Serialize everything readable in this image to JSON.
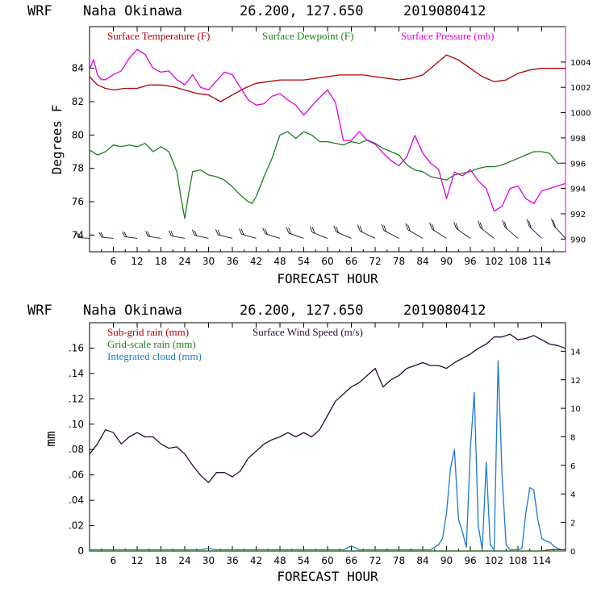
{
  "top_panel": {
    "header": {
      "model": "WRF",
      "location": "Naha Okinawa",
      "coords": "26.200, 127.650",
      "init": "2019080412"
    },
    "xlabel": "FORECAST HOUR",
    "ylabel": "Degrees F",
    "legend": {
      "temp": "Surface Temperature (F)",
      "dew": "Surface Dewpoint (F)",
      "pres": "Surface Pressure (mb)"
    }
  },
  "bottom_panel": {
    "header": {
      "model": "WRF",
      "location": "Naha Okinawa",
      "coords": "26.200, 127.650",
      "init": "2019080412"
    },
    "xlabel": "FORECAST HOUR",
    "ylabel": "mm",
    "legend": {
      "subgrid": "Sub-grid rain (mm)",
      "grid": "Grid-scale rain (mm)",
      "cloud": "Integrated cloud (mm)",
      "wind": "Surface Wind Speed (m/s)"
    }
  },
  "colors": {
    "temp": "#b00000",
    "dew": "#1a7f1a",
    "pres": "#e000e0",
    "wind": "#2a0a3a",
    "cloud": "#1e78d2",
    "subgrid": "#b00000",
    "grid": "#1a7f1a",
    "barbs": "#2a0a3a"
  },
  "chart_data": [
    {
      "type": "line",
      "title": "WRF Naha Okinawa 26.200, 127.650 2019080412",
      "xlabel": "FORECAST HOUR",
      "ylabel": "Degrees F",
      "xlim": [
        0,
        120
      ],
      "ylim": [
        73,
        86.5
      ],
      "y2lim": [
        989,
        1006.8
      ],
      "x_ticks": [
        6,
        12,
        18,
        24,
        30,
        36,
        42,
        48,
        54,
        60,
        66,
        72,
        78,
        84,
        90,
        96,
        102,
        108,
        114
      ],
      "y_ticks": [
        74,
        76,
        78,
        80,
        82,
        84
      ],
      "y2_ticks": [
        990,
        992,
        994,
        996,
        998,
        1000,
        1002,
        1004
      ],
      "series": [
        {
          "name": "Surface Temperature (F)",
          "axis": "left",
          "x": [
            0,
            2,
            4,
            6,
            9,
            12,
            15,
            18,
            21,
            24,
            27,
            30,
            33,
            36,
            39,
            42,
            45,
            48,
            51,
            54,
            57,
            60,
            63,
            66,
            69,
            72,
            75,
            78,
            81,
            84,
            87,
            90,
            93,
            96,
            99,
            102,
            105,
            108,
            111,
            114,
            117,
            120
          ],
          "y": [
            83.5,
            83.0,
            82.8,
            82.7,
            82.8,
            82.8,
            83.0,
            83.0,
            82.9,
            82.7,
            82.5,
            82.4,
            82.0,
            82.4,
            82.8,
            83.1,
            83.2,
            83.3,
            83.3,
            83.3,
            83.4,
            83.5,
            83.6,
            83.6,
            83.6,
            83.5,
            83.4,
            83.3,
            83.4,
            83.6,
            84.2,
            84.8,
            84.5,
            84.0,
            83.5,
            83.2,
            83.3,
            83.7,
            83.9,
            84.0,
            84.0,
            84.0
          ]
        },
        {
          "name": "Surface Dewpoint (F)",
          "axis": "left",
          "x": [
            0,
            2,
            4,
            6,
            8,
            10,
            12,
            14,
            16,
            18,
            20,
            22,
            23,
            24,
            25,
            26,
            28,
            30,
            32,
            34,
            36,
            38,
            40,
            41,
            42,
            44,
            46,
            48,
            50,
            52,
            54,
            56,
            58,
            60,
            62,
            64,
            66,
            68,
            70,
            72,
            74,
            76,
            78,
            80,
            82,
            84,
            86,
            88,
            90,
            92,
            94,
            96,
            98,
            100,
            102,
            104,
            106,
            108,
            110,
            112,
            114,
            116,
            118,
            120
          ],
          "y": [
            79.1,
            78.8,
            79.0,
            79.4,
            79.3,
            79.4,
            79.3,
            79.5,
            79.0,
            79.3,
            79.0,
            77.8,
            76.3,
            75.0,
            76.5,
            77.8,
            77.9,
            77.6,
            77.5,
            77.3,
            76.9,
            76.4,
            76.0,
            75.9,
            76.3,
            77.5,
            78.6,
            80.0,
            80.2,
            79.8,
            80.2,
            80.0,
            79.6,
            79.6,
            79.5,
            79.4,
            79.6,
            79.5,
            79.7,
            79.5,
            79.2,
            79.0,
            78.8,
            78.2,
            77.9,
            77.8,
            77.5,
            77.4,
            77.3,
            77.6,
            77.7,
            77.8,
            78.0,
            78.1,
            78.1,
            78.2,
            78.4,
            78.6,
            78.8,
            79.0,
            79.0,
            78.9,
            78.3,
            78.3
          ]
        },
        {
          "name": "Surface Pressure (mb)",
          "axis": "right",
          "x": [
            0,
            1,
            2,
            3,
            4,
            6,
            8,
            10,
            12,
            14,
            16,
            18,
            20,
            22,
            24,
            26,
            28,
            30,
            32,
            34,
            36,
            38,
            40,
            42,
            44,
            46,
            48,
            50,
            52,
            54,
            56,
            58,
            60,
            62,
            64,
            66,
            68,
            70,
            72,
            74,
            76,
            78,
            80,
            82,
            84,
            86,
            88,
            90,
            92,
            94,
            96,
            98,
            100,
            102,
            104,
            106,
            108,
            110,
            112,
            114,
            116,
            118,
            120
          ],
          "y": [
            1003.4,
            1004.2,
            1003.0,
            1002.6,
            1002.6,
            1003.0,
            1003.3,
            1004.3,
            1005.0,
            1004.6,
            1003.5,
            1003.2,
            1003.3,
            1002.6,
            1002.2,
            1003.0,
            1002.0,
            1001.8,
            1002.5,
            1003.2,
            1003.0,
            1002.0,
            1001.0,
            1000.6,
            1000.7,
            1001.3,
            1001.5,
            1001.0,
            1000.6,
            999.8,
            1000.5,
            1001.2,
            1001.8,
            1000.8,
            997.8,
            997.8,
            998.5,
            997.8,
            997.5,
            996.8,
            996.2,
            995.8,
            996.5,
            998.2,
            996.8,
            996.0,
            995.5,
            993.2,
            995.3,
            995.0,
            995.5,
            994.6,
            994.0,
            992.2,
            992.6,
            994.0,
            994.2,
            993.2,
            992.8,
            993.8,
            994.0,
            994.2,
            994.4
          ]
        },
        {
          "name": "Wind barbs",
          "axis": "left",
          "kind": "barbs",
          "x": [
            0,
            6,
            12,
            18,
            24,
            30,
            36,
            42,
            48,
            54,
            60,
            66,
            72,
            78,
            84,
            90,
            96,
            102,
            108,
            114,
            120
          ],
          "y": [
            73.8,
            73.8,
            73.8,
            73.8,
            73.8,
            73.8,
            73.8,
            73.8,
            73.8,
            73.8,
            73.8,
            73.8,
            73.8,
            73.8,
            73.8,
            73.8,
            73.8,
            73.8,
            73.8,
            73.8,
            73.8
          ]
        }
      ]
    },
    {
      "type": "line",
      "title": "WRF Naha Okinawa 26.200, 127.650 2019080412",
      "xlabel": "FORECAST HOUR",
      "ylabel": "mm",
      "xlim": [
        0,
        120
      ],
      "ylim": [
        0,
        0.18
      ],
      "y2lim": [
        0,
        16
      ],
      "x_ticks": [
        6,
        12,
        18,
        24,
        30,
        36,
        42,
        48,
        54,
        60,
        66,
        72,
        78,
        84,
        90,
        96,
        102,
        108,
        114
      ],
      "y_ticks": [
        0,
        0.02,
        0.04,
        0.06,
        0.08,
        0.1,
        0.12,
        0.14,
        0.16
      ],
      "y_tick_labels": [
        "0",
        ".02",
        ".04",
        ".06",
        ".08",
        ".10",
        ".12",
        ".14",
        ".16"
      ],
      "y2_ticks": [
        0,
        2,
        4,
        6,
        8,
        10,
        12,
        14
      ],
      "series": [
        {
          "name": "Surface Wind Speed (m/s)",
          "axis": "right",
          "x": [
            0,
            2,
            4,
            6,
            8,
            10,
            12,
            14,
            16,
            18,
            20,
            22,
            24,
            26,
            28,
            30,
            32,
            34,
            36,
            38,
            40,
            42,
            44,
            46,
            48,
            50,
            52,
            54,
            56,
            58,
            60,
            62,
            64,
            66,
            68,
            70,
            72,
            74,
            76,
            78,
            80,
            82,
            84,
            86,
            88,
            90,
            92,
            94,
            96,
            98,
            100,
            102,
            104,
            106,
            108,
            110,
            112,
            114,
            116,
            118,
            120
          ],
          "y": [
            6.8,
            7.5,
            8.5,
            8.3,
            7.5,
            8.0,
            8.3,
            8.0,
            8.0,
            7.5,
            7.2,
            7.3,
            6.8,
            6.0,
            5.3,
            4.8,
            5.5,
            5.5,
            5.2,
            5.6,
            6.5,
            7.0,
            7.5,
            7.8,
            8.0,
            8.3,
            8.0,
            8.3,
            8.0,
            8.5,
            9.5,
            10.5,
            11.0,
            11.5,
            11.8,
            12.3,
            12.8,
            11.5,
            12.0,
            12.3,
            12.8,
            13.0,
            13.2,
            13.0,
            13.0,
            12.8,
            13.2,
            13.5,
            13.8,
            14.2,
            14.5,
            15.0,
            15.0,
            15.2,
            14.8,
            14.9,
            15.1,
            14.8,
            14.5,
            14.4,
            14.2
          ]
        },
        {
          "name": "Integrated cloud (mm)",
          "axis": "left",
          "x": [
            0,
            28,
            30,
            32,
            64,
            66,
            68,
            86,
            88,
            89,
            90,
            91,
            92,
            93,
            94,
            95,
            96,
            97,
            98,
            99,
            100,
            101,
            102,
            103,
            104,
            105,
            106,
            107,
            108,
            109,
            110,
            111,
            112,
            113,
            114,
            115,
            116,
            117,
            118,
            119,
            120
          ],
          "y": [
            0.001,
            0.001,
            0.002,
            0.001,
            0.001,
            0.004,
            0.001,
            0.001,
            0.005,
            0.01,
            0.03,
            0.065,
            0.08,
            0.025,
            0.015,
            0.003,
            0.08,
            0.125,
            0.02,
            0.001,
            0.07,
            0.005,
            0.001,
            0.15,
            0.06,
            0.005,
            0.001,
            0.001,
            0.001,
            0.002,
            0.03,
            0.05,
            0.048,
            0.025,
            0.01,
            0.008,
            0.007,
            0.004,
            0.002,
            0.001,
            0.001
          ]
        },
        {
          "name": "Sub-grid rain (mm)",
          "axis": "left",
          "x": [
            0,
            60,
            100,
            110,
            114,
            116,
            118,
            120
          ],
          "y": [
            0,
            0,
            0,
            0,
            0,
            0.001,
            0.001,
            0.001
          ]
        },
        {
          "name": "Grid-scale rain (mm)",
          "axis": "left",
          "x": [
            0,
            120
          ],
          "y": [
            0,
            0
          ]
        }
      ]
    }
  ]
}
